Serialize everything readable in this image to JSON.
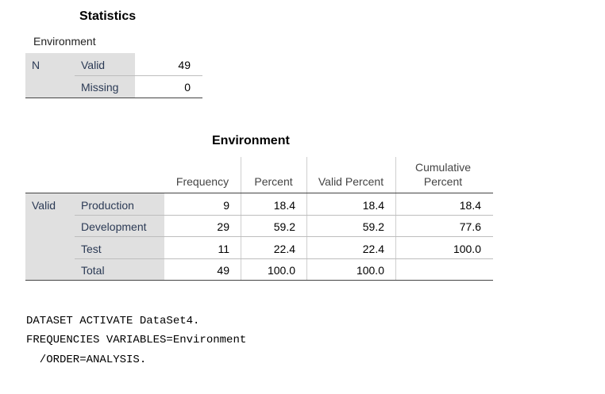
{
  "stats_table": {
    "title": "Statistics",
    "variable": "Environment",
    "row_label": "N",
    "rows": [
      {
        "label": "Valid",
        "value": "49"
      },
      {
        "label": "Missing",
        "value": "0"
      }
    ]
  },
  "freq_table": {
    "title": "Environment",
    "headers": [
      "Frequency",
      "Percent",
      "Valid Percent",
      "Cumulative Percent"
    ],
    "group_label": "Valid",
    "rows": [
      {
        "label": "Production",
        "frequency": "9",
        "percent": "18.4",
        "valid_percent": "18.4",
        "cumulative": "18.4"
      },
      {
        "label": "Development",
        "frequency": "29",
        "percent": "59.2",
        "valid_percent": "59.2",
        "cumulative": "77.6"
      },
      {
        "label": "Test",
        "frequency": "11",
        "percent": "22.4",
        "valid_percent": "22.4",
        "cumulative": "100.0"
      },
      {
        "label": "Total",
        "frequency": "49",
        "percent": "100.0",
        "valid_percent": "100.0",
        "cumulative": ""
      }
    ]
  },
  "syntax": [
    "DATASET ACTIVATE DataSet4.",
    "FREQUENCIES VARIABLES=Environment",
    "  /ORDER=ANALYSIS."
  ]
}
